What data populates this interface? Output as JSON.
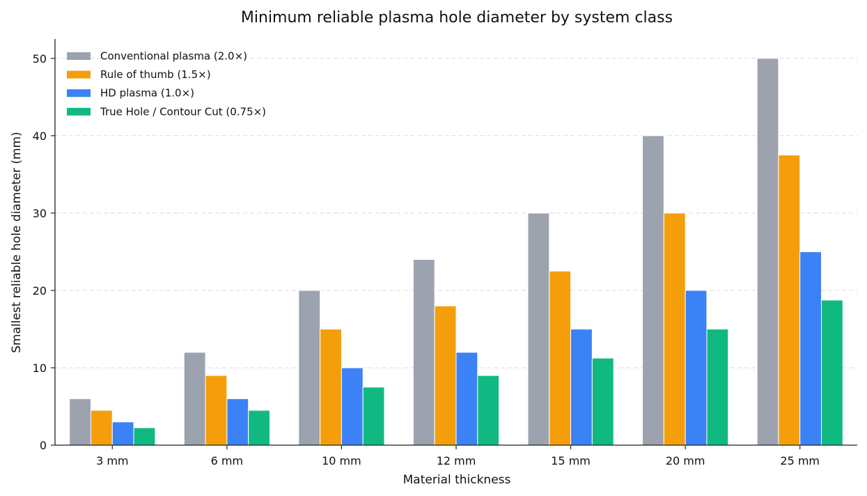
{
  "chart_data": {
    "type": "bar",
    "title": "Minimum reliable plasma hole diameter by system class",
    "xlabel": "Material thickness",
    "ylabel": "Smallest reliable hole diameter (mm)",
    "ylim": [
      0,
      52.5
    ],
    "yticks": [
      0,
      10,
      20,
      30,
      40,
      50
    ],
    "grid": "horizontal dashed",
    "legend_position": "top-left",
    "categories": [
      "3 mm",
      "6 mm",
      "10 mm",
      "12 mm",
      "15 mm",
      "20 mm",
      "25 mm"
    ],
    "series": [
      {
        "name": "Conventional plasma (2.0×)",
        "color": "#9ca3af",
        "values": [
          6,
          12,
          20,
          24,
          30,
          40,
          50
        ]
      },
      {
        "name": "Rule of thumb (1.5×)",
        "color": "#f59e0b",
        "values": [
          4.5,
          9,
          15,
          18,
          22.5,
          30,
          37.5
        ]
      },
      {
        "name": "HD plasma (1.0×)",
        "color": "#3b82f6",
        "values": [
          3,
          6,
          10,
          12,
          15,
          20,
          25
        ]
      },
      {
        "name": "True Hole / Contour Cut (0.75×)",
        "color": "#10b981",
        "values": [
          2.25,
          4.5,
          7.5,
          9,
          11.25,
          15,
          18.75
        ]
      }
    ]
  }
}
